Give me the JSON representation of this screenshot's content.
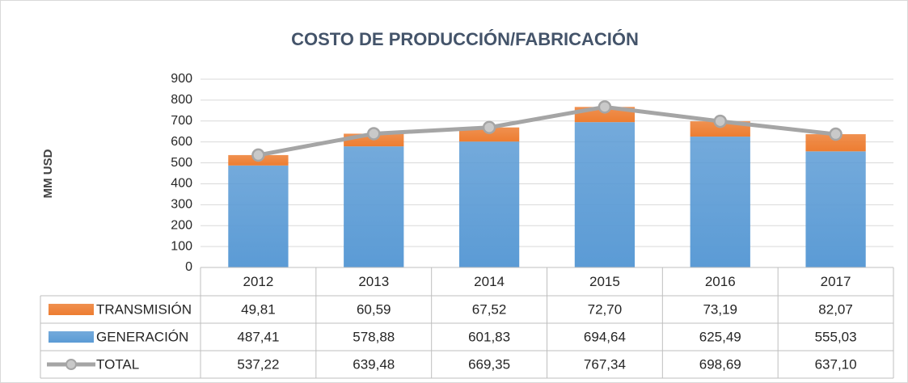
{
  "chart_data": {
    "type": "bar",
    "title": "COSTO DE PRODUCCIÓN/FABRICACIÓN",
    "y_label": "MM USD",
    "categories": [
      "2012",
      "2013",
      "2014",
      "2015",
      "2016",
      "2017"
    ],
    "stacked": true,
    "grid": true,
    "ylim": [
      0,
      900
    ],
    "yticks": [
      0,
      100,
      200,
      300,
      400,
      500,
      600,
      700,
      800,
      900
    ],
    "series": [
      {
        "name": "TRANSMISIÓN",
        "type": "bar",
        "color": "#ed7d31",
        "values": [
          49.81,
          60.59,
          67.52,
          72.7,
          73.19,
          82.07
        ],
        "value_labels": [
          "49,81",
          "60,59",
          "67,52",
          "72,70",
          "73,19",
          "82,07"
        ]
      },
      {
        "name": "GENERACIÓN",
        "type": "bar",
        "color": "#5b9bd5",
        "values": [
          487.41,
          578.88,
          601.83,
          694.64,
          625.49,
          555.03
        ],
        "value_labels": [
          "487,41",
          "578,88",
          "601,83",
          "694,64",
          "625,49",
          "555,03"
        ]
      },
      {
        "name": "TOTAL",
        "type": "line",
        "color": "#a5a5a5",
        "values": [
          537.22,
          639.48,
          669.35,
          767.34,
          698.69,
          637.1
        ],
        "value_labels": [
          "537,22",
          "639,48",
          "669,35",
          "767,34",
          "698,69",
          "637,10"
        ]
      }
    ]
  }
}
